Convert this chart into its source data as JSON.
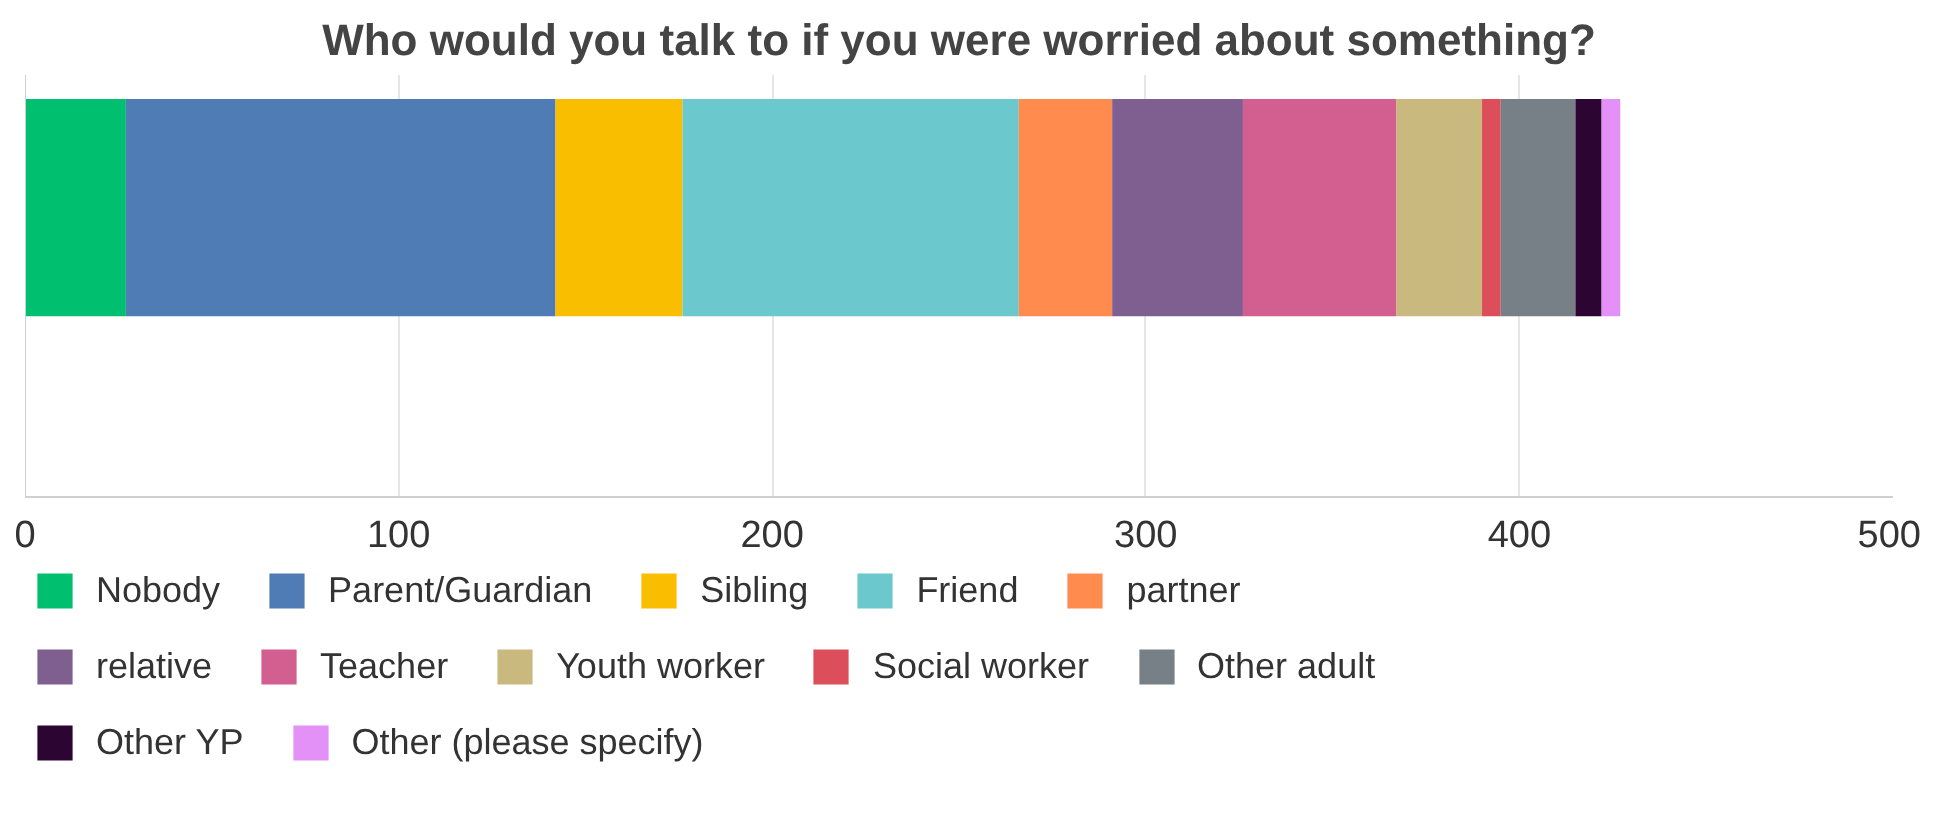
{
  "chart_data": {
    "type": "bar",
    "title": "Who would you talk to if you were worried about something?",
    "orientation": "horizontal",
    "stacked": true,
    "categories": [
      null
    ],
    "series": [
      {
        "name": "Nobody",
        "color": "#00bf6f",
        "values": [
          27
        ]
      },
      {
        "name": "Parent/Guardian",
        "color": "#507cb6",
        "values": [
          115
        ]
      },
      {
        "name": "Sibling",
        "color": "#f9be00",
        "values": [
          34
        ]
      },
      {
        "name": "Friend",
        "color": "#6bc8cd",
        "values": [
          90
        ]
      },
      {
        "name": "partner",
        "color": "#ff8b4f",
        "values": [
          25
        ]
      },
      {
        "name": "relative",
        "color": "#7f5f90",
        "values": [
          35
        ]
      },
      {
        "name": "Teacher",
        "color": "#d25f90",
        "values": [
          41
        ]
      },
      {
        "name": "Youth worker",
        "color": "#c9b97f",
        "values": [
          23
        ]
      },
      {
        "name": "Social worker",
        "color": "#dc4e5a",
        "values": [
          5
        ]
      },
      {
        "name": "Other adult",
        "color": "#768086",
        "values": [
          20
        ]
      },
      {
        "name": "Other YP",
        "color": "#2c0533",
        "values": [
          7
        ]
      },
      {
        "name": "Other (please specify)",
        "color": "#e390f7",
        "values": [
          5
        ]
      }
    ],
    "xlim": [
      0,
      500
    ],
    "xticks": [
      0,
      100,
      200,
      300,
      400,
      500
    ],
    "grid": "x",
    "legend": "bottom"
  }
}
